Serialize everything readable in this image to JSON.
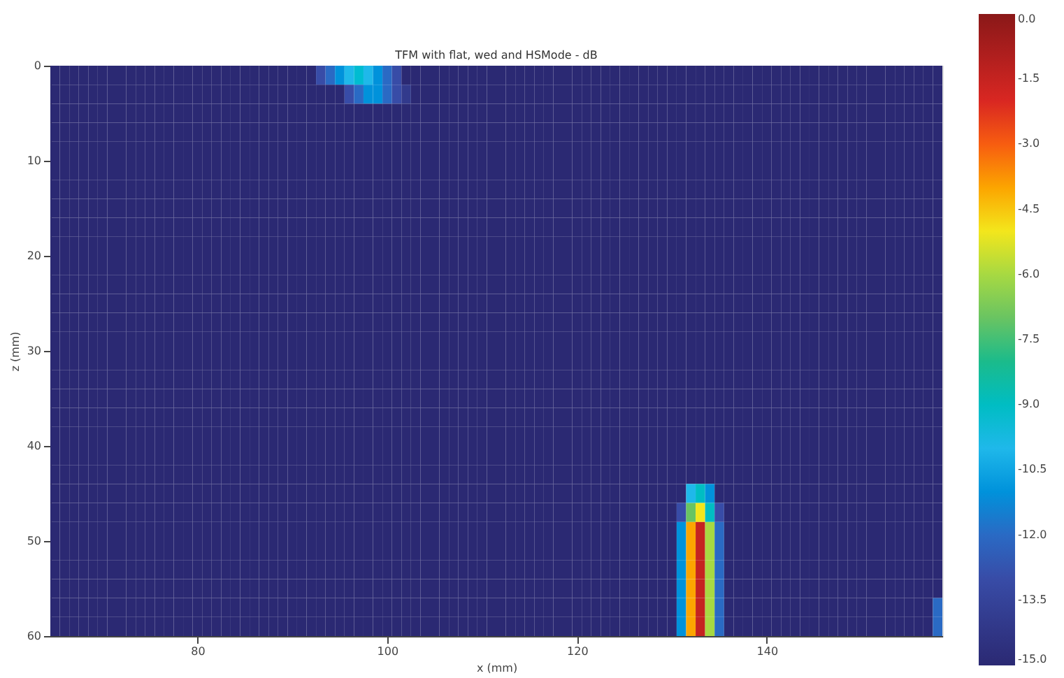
{
  "chart_data": {
    "type": "heatmap",
    "title": "TFM with flat, wed and HSMode - dB",
    "xlabel": "x (mm)",
    "ylabel": "z (mm)",
    "xlim": [
      64.5,
      158.5
    ],
    "ylim": [
      60,
      0
    ],
    "xticks": [
      80,
      100,
      120,
      140
    ],
    "yticks": [
      0,
      10,
      20,
      30,
      40,
      50,
      60
    ],
    "clim": [
      -15,
      0
    ],
    "cticks": [
      {
        "value": 0,
        "label": "0.0"
      },
      {
        "value": -1.5,
        "label": "-1.5"
      },
      {
        "value": -3,
        "label": "-3.0"
      },
      {
        "value": -4.5,
        "label": "-4.5"
      },
      {
        "value": -6,
        "label": "-6.0"
      },
      {
        "value": -7.5,
        "label": "-7.5"
      },
      {
        "value": -9,
        "label": "-9.0"
      },
      {
        "value": -10.5,
        "label": "-10.5"
      },
      {
        "value": -12,
        "label": "-12.0"
      },
      {
        "value": -13.5,
        "label": "-13.5"
      },
      {
        "value": -15,
        "label": "-15.0"
      }
    ],
    "x": [
      65,
      66,
      67,
      68,
      69,
      70,
      71,
      72,
      73,
      74,
      75,
      76,
      77,
      78,
      79,
      80,
      81,
      82,
      83,
      84,
      85,
      86,
      87,
      88,
      89,
      90,
      91,
      92,
      93,
      94,
      95,
      96,
      97,
      98,
      99,
      100,
      101,
      102,
      103,
      104,
      105,
      106,
      107,
      108,
      109,
      110,
      111,
      112,
      113,
      114,
      115,
      116,
      117,
      118,
      119,
      120,
      121,
      122,
      123,
      124,
      125,
      126,
      127,
      128,
      129,
      130,
      131,
      132,
      133,
      134,
      135,
      136,
      137,
      138,
      139,
      140,
      141,
      142,
      143,
      144,
      145,
      146,
      147,
      148,
      149,
      150,
      151,
      152,
      153,
      154,
      155,
      156,
      157,
      158
    ],
    "y": [
      1,
      3,
      5,
      7,
      9,
      11,
      13,
      15,
      17,
      19,
      21,
      23,
      25,
      27,
      29,
      31,
      33,
      35,
      37,
      39,
      41,
      43,
      45,
      47,
      49,
      51,
      53,
      55,
      57,
      59
    ],
    "cells": [
      [
        -15,
        -15,
        -15,
        -15,
        -15,
        -15,
        -15,
        -15,
        -15,
        -15,
        -15,
        -15,
        -15,
        -15,
        -15,
        -15,
        -15,
        -15,
        -15,
        -15,
        -15,
        -15,
        -15,
        -15,
        -15,
        -15,
        -15,
        -15,
        -13,
        -12,
        -11,
        -10,
        -9.3,
        -10,
        -11,
        -12,
        -13,
        -15,
        -15,
        -15,
        -15,
        -15,
        -15,
        -15,
        -15,
        -15,
        -15,
        -15,
        -15,
        -15,
        -15,
        -15,
        -15,
        -15,
        -15,
        -15,
        -15,
        -15,
        -15,
        -15,
        -15,
        -15,
        -15,
        -15,
        -15,
        -15,
        -15,
        -15,
        -15,
        -15,
        -15,
        -15,
        -15,
        -15,
        -15,
        -15,
        -15,
        -15,
        -15,
        -15,
        -15,
        -15,
        -15,
        -15,
        -15,
        -15,
        -15,
        -15,
        -15,
        -15,
        -15,
        -15,
        -15,
        -15
      ],
      [
        -15,
        -15,
        -15,
        -15,
        -15,
        -15,
        -15,
        -15,
        -15,
        -15,
        -15,
        -15,
        -15,
        -15,
        -15,
        -15,
        -15,
        -15,
        -15,
        -15,
        -15,
        -15,
        -15,
        -15,
        -15,
        -15,
        -15,
        -15,
        -15,
        -15,
        -15,
        -13,
        -12,
        -11,
        -11,
        -12,
        -13,
        -14,
        -15,
        -15,
        -15,
        -15,
        -15,
        -15,
        -15,
        -15,
        -15,
        -15,
        -15,
        -15,
        -15,
        -15,
        -15,
        -15,
        -15,
        -15,
        -15,
        -15,
        -15,
        -15,
        -15,
        -15,
        -15,
        -15,
        -15,
        -15,
        -15,
        -15,
        -15,
        -15,
        -15,
        -15,
        -15,
        -15,
        -15,
        -15,
        -15,
        -15,
        -15,
        -15,
        -15,
        -15,
        -15,
        -15,
        -15,
        -15,
        -15,
        -15,
        -15,
        -15,
        -15,
        -15,
        -15,
        -15
      ],
      [
        -15,
        -15,
        -15,
        -15,
        -15,
        -15,
        -15,
        -15,
        -15,
        -15,
        -15,
        -15,
        -15,
        -15,
        -15,
        -15,
        -15,
        -15,
        -15,
        -15,
        -15,
        -15,
        -15,
        -15,
        -15,
        -15,
        -15,
        -15,
        -15,
        -15,
        -15,
        -15,
        -15,
        -15,
        -15,
        -15,
        -15,
        -15,
        -15,
        -15,
        -15,
        -15,
        -15,
        -15,
        -15,
        -15,
        -15,
        -15,
        -15,
        -15,
        -15,
        -15,
        -15,
        -15,
        -15,
        -15,
        -15,
        -15,
        -15,
        -15,
        -15,
        -15,
        -15,
        -15,
        -15,
        -15,
        -15,
        -15,
        -15,
        -15,
        -15,
        -15,
        -15,
        -15,
        -15,
        -15,
        -15,
        -15,
        -15,
        -15,
        -15,
        -15,
        -15,
        -15,
        -15,
        -15,
        -15,
        -15,
        -15,
        -15,
        -15,
        -15,
        -15,
        -15
      ],
      [
        -15,
        -15,
        -15,
        -15,
        -15,
        -15,
        -15,
        -15,
        -15,
        -15,
        -15,
        -15,
        -15,
        -15,
        -15,
        -15,
        -15,
        -15,
        -15,
        -15,
        -15,
        -15,
        -15,
        -15,
        -15,
        -15,
        -15,
        -15,
        -15,
        -15,
        -15,
        -15,
        -15,
        -15,
        -15,
        -15,
        -15,
        -15,
        -15,
        -15,
        -15,
        -15,
        -15,
        -15,
        -15,
        -15,
        -15,
        -15,
        -15,
        -15,
        -15,
        -15,
        -15,
        -15,
        -15,
        -15,
        -15,
        -15,
        -15,
        -15,
        -15,
        -15,
        -15,
        -15,
        -15,
        -15,
        -15,
        -15,
        -15,
        -15,
        -15,
        -15,
        -15,
        -15,
        -15,
        -15,
        -15,
        -15,
        -15,
        -15,
        -15,
        -15,
        -15,
        -15,
        -15,
        -15,
        -15,
        -15,
        -15,
        -15,
        -15,
        -15,
        -15,
        -15
      ],
      [
        -15,
        -15,
        -15,
        -15,
        -15,
        -15,
        -15,
        -15,
        -15,
        -15,
        -15,
        -15,
        -15,
        -15,
        -15,
        -15,
        -15,
        -15,
        -15,
        -15,
        -15,
        -15,
        -15,
        -15,
        -15,
        -15,
        -15,
        -15,
        -15,
        -15,
        -15,
        -15,
        -15,
        -15,
        -15,
        -15,
        -15,
        -15,
        -15,
        -15,
        -15,
        -15,
        -15,
        -15,
        -15,
        -15,
        -15,
        -15,
        -15,
        -15,
        -15,
        -15,
        -15,
        -15,
        -15,
        -15,
        -15,
        -15,
        -15,
        -15,
        -15,
        -15,
        -15,
        -15,
        -15,
        -15,
        -15,
        -15,
        -15,
        -15,
        -15,
        -15,
        -15,
        -15,
        -15,
        -15,
        -15,
        -15,
        -15,
        -15,
        -15,
        -15,
        -15,
        -15,
        -15,
        -15,
        -15,
        -15,
        -15,
        -15,
        -15,
        -15,
        -15,
        -15
      ],
      [
        -15,
        -15,
        -15,
        -15,
        -15,
        -15,
        -15,
        -15,
        -15,
        -15,
        -15,
        -15,
        -15,
        -15,
        -15,
        -15,
        -15,
        -15,
        -15,
        -15,
        -15,
        -15,
        -15,
        -15,
        -15,
        -15,
        -15,
        -15,
        -15,
        -15,
        -15,
        -15,
        -15,
        -15,
        -15,
        -15,
        -15,
        -15,
        -15,
        -15,
        -15,
        -15,
        -15,
        -15,
        -15,
        -15,
        -15,
        -15,
        -15,
        -15,
        -15,
        -15,
        -15,
        -15,
        -15,
        -15,
        -15,
        -15,
        -15,
        -15,
        -15,
        -15,
        -15,
        -15,
        -15,
        -15,
        -15,
        -15,
        -15,
        -15,
        -15,
        -15,
        -15,
        -15,
        -15,
        -15,
        -15,
        -15,
        -15,
        -15,
        -15,
        -15,
        -15,
        -15,
        -15,
        -15,
        -15,
        -15,
        -15,
        -15,
        -15,
        -15,
        -15,
        -15
      ],
      [
        -15,
        -15,
        -15,
        -15,
        -15,
        -15,
        -15,
        -15,
        -15,
        -15,
        -15,
        -15,
        -15,
        -15,
        -15,
        -15,
        -15,
        -15,
        -15,
        -15,
        -15,
        -15,
        -15,
        -15,
        -15,
        -15,
        -15,
        -15,
        -15,
        -15,
        -15,
        -15,
        -15,
        -15,
        -15,
        -15,
        -15,
        -15,
        -15,
        -15,
        -15,
        -15,
        -15,
        -15,
        -15,
        -15,
        -15,
        -15,
        -15,
        -15,
        -15,
        -15,
        -15,
        -15,
        -15,
        -15,
        -15,
        -15,
        -15,
        -15,
        -15,
        -15,
        -15,
        -15,
        -15,
        -15,
        -15,
        -15,
        -15,
        -15,
        -15,
        -15,
        -15,
        -15,
        -15,
        -15,
        -15,
        -15,
        -15,
        -15,
        -15,
        -15,
        -15,
        -15,
        -15,
        -15,
        -15,
        -15,
        -15,
        -15,
        -15,
        -15,
        -15,
        -15
      ],
      [
        -15,
        -15,
        -15,
        -15,
        -15,
        -15,
        -15,
        -15,
        -15,
        -15,
        -15,
        -15,
        -15,
        -15,
        -15,
        -15,
        -15,
        -15,
        -15,
        -15,
        -15,
        -15,
        -15,
        -15,
        -15,
        -15,
        -15,
        -15,
        -15,
        -15,
        -15,
        -15,
        -15,
        -15,
        -15,
        -15,
        -15,
        -15,
        -15,
        -15,
        -15,
        -15,
        -15,
        -15,
        -15,
        -15,
        -15,
        -15,
        -15,
        -15,
        -15,
        -15,
        -15,
        -15,
        -15,
        -15,
        -15,
        -15,
        -15,
        -15,
        -15,
        -15,
        -15,
        -15,
        -15,
        -15,
        -15,
        -15,
        -15,
        -15,
        -15,
        -15,
        -15,
        -15,
        -15,
        -15,
        -15,
        -15,
        -15,
        -15,
        -15,
        -15,
        -15,
        -15,
        -15,
        -15,
        -15,
        -15,
        -15,
        -15,
        -15,
        -15,
        -15,
        -15
      ],
      [
        -15,
        -15,
        -15,
        -15,
        -15,
        -15,
        -15,
        -15,
        -15,
        -15,
        -15,
        -15,
        -15,
        -15,
        -15,
        -15,
        -15,
        -15,
        -15,
        -15,
        -15,
        -15,
        -15,
        -15,
        -15,
        -15,
        -15,
        -15,
        -15,
        -15,
        -15,
        -15,
        -15,
        -15,
        -15,
        -15,
        -15,
        -15,
        -15,
        -15,
        -15,
        -15,
        -15,
        -15,
        -15,
        -15,
        -15,
        -15,
        -15,
        -15,
        -15,
        -15,
        -15,
        -15,
        -15,
        -15,
        -15,
        -15,
        -15,
        -15,
        -15,
        -15,
        -15,
        -15,
        -15,
        -15,
        -15,
        -15,
        -15,
        -15,
        -15,
        -15,
        -15,
        -15,
        -15,
        -15,
        -15,
        -15,
        -15,
        -15,
        -15,
        -15,
        -15,
        -15,
        -15,
        -15,
        -15,
        -15,
        -15,
        -15,
        -15,
        -15,
        -15,
        -15
      ],
      [
        -15,
        -15,
        -15,
        -15,
        -15,
        -15,
        -15,
        -15,
        -15,
        -15,
        -15,
        -15,
        -15,
        -15,
        -15,
        -15,
        -15,
        -15,
        -15,
        -15,
        -15,
        -15,
        -15,
        -15,
        -15,
        -15,
        -15,
        -15,
        -15,
        -15,
        -15,
        -15,
        -15,
        -15,
        -15,
        -15,
        -15,
        -15,
        -15,
        -15,
        -15,
        -15,
        -15,
        -15,
        -15,
        -15,
        -15,
        -15,
        -15,
        -15,
        -15,
        -15,
        -15,
        -15,
        -15,
        -15,
        -15,
        -15,
        -15,
        -15,
        -15,
        -15,
        -15,
        -15,
        -15,
        -15,
        -15,
        -15,
        -15,
        -15,
        -15,
        -15,
        -15,
        -15,
        -15,
        -15,
        -15,
        -15,
        -15,
        -15,
        -15,
        -15,
        -15,
        -15,
        -15,
        -15,
        -15,
        -15,
        -15,
        -15,
        -15,
        -15,
        -15,
        -15
      ],
      [
        -15,
        -15,
        -15,
        -15,
        -15,
        -15,
        -15,
        -15,
        -15,
        -15,
        -15,
        -15,
        -15,
        -15,
        -15,
        -15,
        -15,
        -15,
        -15,
        -15,
        -15,
        -15,
        -15,
        -15,
        -15,
        -15,
        -15,
        -15,
        -15,
        -15,
        -15,
        -15,
        -15,
        -15,
        -15,
        -15,
        -15,
        -15,
        -15,
        -15,
        -15,
        -15,
        -15,
        -15,
        -15,
        -15,
        -15,
        -15,
        -15,
        -15,
        -15,
        -15,
        -15,
        -15,
        -15,
        -15,
        -15,
        -15,
        -15,
        -15,
        -15,
        -15,
        -15,
        -15,
        -15,
        -15,
        -15,
        -15,
        -15,
        -15,
        -15,
        -15,
        -15,
        -15,
        -15,
        -15,
        -15,
        -15,
        -15,
        -15,
        -15,
        -15,
        -15,
        -15,
        -15,
        -15,
        -15,
        -15,
        -15,
        -15,
        -15,
        -15,
        -15,
        -15
      ],
      [
        -15,
        -15,
        -15,
        -15,
        -15,
        -15,
        -15,
        -15,
        -15,
        -15,
        -15,
        -15,
        -15,
        -15,
        -15,
        -15,
        -15,
        -15,
        -15,
        -15,
        -15,
        -15,
        -15,
        -15,
        -15,
        -15,
        -15,
        -15,
        -15,
        -15,
        -15,
        -15,
        -15,
        -15,
        -15,
        -15,
        -15,
        -15,
        -15,
        -15,
        -15,
        -15,
        -15,
        -15,
        -15,
        -15,
        -15,
        -15,
        -15,
        -15,
        -15,
        -15,
        -15,
        -15,
        -15,
        -15,
        -15,
        -15,
        -15,
        -15,
        -15,
        -15,
        -15,
        -15,
        -15,
        -15,
        -15,
        -15,
        -15,
        -15,
        -15,
        -15,
        -15,
        -15,
        -15,
        -15,
        -15,
        -15,
        -15,
        -15,
        -15,
        -15,
        -15,
        -15,
        -15,
        -15,
        -15,
        -15,
        -15,
        -15,
        -15,
        -15,
        -15,
        -15
      ],
      [
        -15,
        -15,
        -15,
        -15,
        -15,
        -15,
        -15,
        -15,
        -15,
        -15,
        -15,
        -15,
        -15,
        -15,
        -15,
        -15,
        -15,
        -15,
        -15,
        -15,
        -15,
        -15,
        -15,
        -15,
        -15,
        -15,
        -15,
        -15,
        -15,
        -15,
        -15,
        -15,
        -15,
        -15,
        -15,
        -15,
        -15,
        -15,
        -15,
        -15,
        -15,
        -15,
        -15,
        -15,
        -15,
        -15,
        -15,
        -15,
        -15,
        -15,
        -15,
        -15,
        -15,
        -15,
        -15,
        -15,
        -15,
        -15,
        -15,
        -15,
        -15,
        -15,
        -15,
        -15,
        -15,
        -15,
        -15,
        -15,
        -15,
        -15,
        -15,
        -15,
        -15,
        -15,
        -15,
        -15,
        -15,
        -15,
        -15,
        -15,
        -15,
        -15,
        -15,
        -15,
        -15,
        -15,
        -15,
        -15,
        -15,
        -15,
        -15,
        -15,
        -15,
        -15
      ],
      [
        -15,
        -15,
        -15,
        -15,
        -15,
        -15,
        -15,
        -15,
        -15,
        -15,
        -15,
        -15,
        -15,
        -15,
        -15,
        -15,
        -15,
        -15,
        -15,
        -15,
        -15,
        -15,
        -15,
        -15,
        -15,
        -15,
        -15,
        -15,
        -15,
        -15,
        -15,
        -15,
        -15,
        -15,
        -15,
        -15,
        -15,
        -15,
        -15,
        -15,
        -15,
        -15,
        -15,
        -15,
        -15,
        -15,
        -15,
        -15,
        -15,
        -15,
        -15,
        -15,
        -15,
        -15,
        -15,
        -15,
        -15,
        -15,
        -15,
        -15,
        -15,
        -15,
        -15,
        -15,
        -15,
        -15,
        -15,
        -15,
        -15,
        -15,
        -15,
        -15,
        -15,
        -15,
        -15,
        -15,
        -15,
        -15,
        -15,
        -15,
        -15,
        -15,
        -15,
        -15,
        -15,
        -15,
        -15,
        -15,
        -15,
        -15,
        -15,
        -15,
        -15,
        -15
      ],
      [
        -15,
        -15,
        -15,
        -15,
        -15,
        -15,
        -15,
        -15,
        -15,
        -15,
        -15,
        -15,
        -15,
        -15,
        -15,
        -15,
        -15,
        -15,
        -15,
        -15,
        -15,
        -15,
        -15,
        -15,
        -15,
        -15,
        -15,
        -15,
        -15,
        -15,
        -15,
        -15,
        -15,
        -15,
        -15,
        -15,
        -15,
        -15,
        -15,
        -15,
        -15,
        -15,
        -15,
        -15,
        -15,
        -15,
        -15,
        -15,
        -15,
        -15,
        -15,
        -15,
        -15,
        -15,
        -15,
        -15,
        -15,
        -15,
        -15,
        -15,
        -15,
        -15,
        -15,
        -15,
        -15,
        -15,
        -15,
        -15,
        -15,
        -15,
        -15,
        -15,
        -15,
        -15,
        -15,
        -15,
        -15,
        -15,
        -15,
        -15,
        -15,
        -15,
        -15,
        -15,
        -15,
        -15,
        -15,
        -15,
        -15,
        -15,
        -15,
        -15,
        -15,
        -15
      ],
      [
        -15,
        -15,
        -15,
        -15,
        -15,
        -15,
        -15,
        -15,
        -15,
        -15,
        -15,
        -15,
        -15,
        -15,
        -15,
        -15,
        -15,
        -15,
        -15,
        -15,
        -15,
        -15,
        -15,
        -15,
        -15,
        -15,
        -15,
        -15,
        -15,
        -15,
        -15,
        -15,
        -15,
        -15,
        -15,
        -15,
        -15,
        -15,
        -15,
        -15,
        -15,
        -15,
        -15,
        -15,
        -15,
        -15,
        -15,
        -15,
        -15,
        -15,
        -15,
        -15,
        -15,
        -15,
        -15,
        -15,
        -15,
        -15,
        -15,
        -15,
        -15,
        -15,
        -15,
        -15,
        -15,
        -15,
        -15,
        -15,
        -15,
        -15,
        -15,
        -15,
        -15,
        -15,
        -15,
        -15,
        -15,
        -15,
        -15,
        -15,
        -15,
        -15,
        -15,
        -15,
        -15,
        -15,
        -15,
        -15,
        -15,
        -15,
        -15,
        -15,
        -15,
        -15
      ],
      [
        -15,
        -15,
        -15,
        -15,
        -15,
        -15,
        -15,
        -15,
        -15,
        -15,
        -15,
        -15,
        -15,
        -15,
        -15,
        -15,
        -15,
        -15,
        -15,
        -15,
        -15,
        -15,
        -15,
        -15,
        -15,
        -15,
        -15,
        -15,
        -15,
        -15,
        -15,
        -15,
        -15,
        -15,
        -15,
        -15,
        -15,
        -15,
        -15,
        -15,
        -15,
        -15,
        -15,
        -15,
        -15,
        -15,
        -15,
        -15,
        -15,
        -15,
        -15,
        -15,
        -15,
        -15,
        -15,
        -15,
        -15,
        -15,
        -15,
        -15,
        -15,
        -15,
        -15,
        -15,
        -15,
        -15,
        -15,
        -15,
        -15,
        -15,
        -15,
        -15,
        -15,
        -15,
        -15,
        -15,
        -15,
        -15,
        -15,
        -15,
        -15,
        -15,
        -15,
        -15,
        -15,
        -15,
        -15,
        -15,
        -15,
        -15,
        -15,
        -15,
        -15,
        -15
      ],
      [
        -15,
        -15,
        -15,
        -15,
        -15,
        -15,
        -15,
        -15,
        -15,
        -15,
        -15,
        -15,
        -15,
        -15,
        -15,
        -15,
        -15,
        -15,
        -15,
        -15,
        -15,
        -15,
        -15,
        -15,
        -15,
        -15,
        -15,
        -15,
        -15,
        -15,
        -15,
        -15,
        -15,
        -15,
        -15,
        -15,
        -15,
        -15,
        -15,
        -15,
        -15,
        -15,
        -15,
        -15,
        -15,
        -15,
        -15,
        -15,
        -15,
        -15,
        -15,
        -15,
        -15,
        -15,
        -15,
        -15,
        -15,
        -15,
        -15,
        -15,
        -15,
        -15,
        -15,
        -15,
        -15,
        -15,
        -15,
        -15,
        -15,
        -15,
        -15,
        -15,
        -15,
        -15,
        -15,
        -15,
        -15,
        -15,
        -15,
        -15,
        -15,
        -15,
        -15,
        -15,
        -15,
        -15,
        -15,
        -15,
        -15,
        -15,
        -15,
        -15,
        -15,
        -15
      ],
      [
        -15,
        -15,
        -15,
        -15,
        -15,
        -15,
        -15,
        -15,
        -15,
        -15,
        -15,
        -15,
        -15,
        -15,
        -15,
        -15,
        -15,
        -15,
        -15,
        -15,
        -15,
        -15,
        -15,
        -15,
        -15,
        -15,
        -15,
        -15,
        -15,
        -15,
        -15,
        -15,
        -15,
        -15,
        -15,
        -15,
        -15,
        -15,
        -15,
        -15,
        -15,
        -15,
        -15,
        -15,
        -15,
        -15,
        -15,
        -15,
        -15,
        -15,
        -15,
        -15,
        -15,
        -15,
        -15,
        -15,
        -15,
        -15,
        -15,
        -15,
        -15,
        -15,
        -15,
        -15,
        -15,
        -15,
        -15,
        -15,
        -15,
        -15,
        -15,
        -15,
        -15,
        -15,
        -15,
        -15,
        -15,
        -15,
        -15,
        -15,
        -15,
        -15,
        -15,
        -15,
        -15,
        -15,
        -15,
        -15,
        -15,
        -15,
        -15,
        -15,
        -15,
        -15
      ],
      [
        -15,
        -15,
        -15,
        -15,
        -15,
        -15,
        -15,
        -15,
        -15,
        -15,
        -15,
        -15,
        -15,
        -15,
        -15,
        -15,
        -15,
        -15,
        -15,
        -15,
        -15,
        -15,
        -15,
        -15,
        -15,
        -15,
        -15,
        -15,
        -15,
        -15,
        -15,
        -15,
        -15,
        -15,
        -15,
        -15,
        -15,
        -15,
        -15,
        -15,
        -15,
        -15,
        -15,
        -15,
        -15,
        -15,
        -15,
        -15,
        -15,
        -15,
        -15,
        -15,
        -15,
        -15,
        -15,
        -15,
        -15,
        -15,
        -15,
        -15,
        -15,
        -15,
        -15,
        -15,
        -15,
        -15,
        -15,
        -15,
        -15,
        -15,
        -15,
        -15,
        -15,
        -15,
        -15,
        -15,
        -15,
        -15,
        -15,
        -15,
        -15,
        -15,
        -15,
        -15,
        -15,
        -15,
        -15,
        -15,
        -15,
        -15,
        -15,
        -15,
        -15,
        -15
      ],
      [
        -15,
        -15,
        -15,
        -15,
        -15,
        -15,
        -15,
        -15,
        -15,
        -15,
        -15,
        -15,
        -15,
        -15,
        -15,
        -15,
        -15,
        -15,
        -15,
        -15,
        -15,
        -15,
        -15,
        -15,
        -15,
        -15,
        -15,
        -15,
        -15,
        -15,
        -15,
        -15,
        -15,
        -15,
        -15,
        -15,
        -15,
        -15,
        -15,
        -15,
        -15,
        -15,
        -15,
        -15,
        -15,
        -15,
        -15,
        -15,
        -15,
        -15,
        -15,
        -15,
        -15,
        -15,
        -15,
        -15,
        -15,
        -15,
        -15,
        -15,
        -15,
        -15,
        -15,
        -15,
        -15,
        -15,
        -15,
        -15,
        -15,
        -15,
        -15,
        -15,
        -15,
        -15,
        -15,
        -15,
        -15,
        -15,
        -15,
        -15,
        -15,
        -15,
        -15,
        -15,
        -15,
        -15,
        -15,
        -15,
        -15,
        -15,
        -15,
        -15,
        -15,
        -15
      ],
      [
        -15,
        -15,
        -15,
        -15,
        -15,
        -15,
        -15,
        -15,
        -15,
        -15,
        -15,
        -15,
        -15,
        -15,
        -15,
        -15,
        -15,
        -15,
        -15,
        -15,
        -15,
        -15,
        -15,
        -15,
        -15,
        -15,
        -15,
        -15,
        -15,
        -15,
        -15,
        -15,
        -15,
        -15,
        -15,
        -15,
        -15,
        -15,
        -15,
        -15,
        -15,
        -15,
        -15,
        -15,
        -15,
        -15,
        -15,
        -15,
        -15,
        -15,
        -15,
        -15,
        -15,
        -15,
        -15,
        -15,
        -15,
        -15,
        -15,
        -15,
        -15,
        -15,
        -15,
        -15,
        -15,
        -15,
        -15,
        -15,
        -15,
        -15,
        -15,
        -15,
        -15,
        -15,
        -15,
        -15,
        -15,
        -15,
        -15,
        -15,
        -15,
        -15,
        -15,
        -15,
        -15,
        -15,
        -15,
        -15,
        -15,
        -15,
        -15,
        -15,
        -15,
        -15
      ],
      [
        -15,
        -15,
        -15,
        -15,
        -15,
        -15,
        -15,
        -15,
        -15,
        -15,
        -15,
        -15,
        -15,
        -15,
        -15,
        -15,
        -15,
        -15,
        -15,
        -15,
        -15,
        -15,
        -15,
        -15,
        -15,
        -15,
        -15,
        -15,
        -15,
        -15,
        -15,
        -15,
        -15,
        -15,
        -15,
        -15,
        -15,
        -15,
        -15,
        -15,
        -15,
        -15,
        -15,
        -15,
        -15,
        -15,
        -15,
        -15,
        -15,
        -15,
        -15,
        -15,
        -15,
        -15,
        -15,
        -15,
        -15,
        -15,
        -15,
        -15,
        -15,
        -15,
        -15,
        -15,
        -15,
        -15,
        -15,
        -10,
        -9,
        -11,
        -15,
        -15,
        -15,
        -15,
        -15,
        -15,
        -15,
        -15,
        -15,
        -15,
        -15,
        -15,
        -15,
        -15,
        -15,
        -15,
        -15,
        -15,
        -15,
        -15,
        -15,
        -15,
        -15,
        -15
      ],
      [
        -15,
        -15,
        -15,
        -15,
        -15,
        -15,
        -15,
        -15,
        -15,
        -15,
        -15,
        -15,
        -15,
        -15,
        -15,
        -15,
        -15,
        -15,
        -15,
        -15,
        -15,
        -15,
        -15,
        -15,
        -15,
        -15,
        -15,
        -15,
        -15,
        -15,
        -15,
        -15,
        -15,
        -15,
        -15,
        -15,
        -15,
        -15,
        -15,
        -15,
        -15,
        -15,
        -15,
        -15,
        -15,
        -15,
        -15,
        -15,
        -15,
        -15,
        -15,
        -15,
        -15,
        -15,
        -15,
        -15,
        -15,
        -15,
        -15,
        -15,
        -15,
        -15,
        -15,
        -15,
        -15,
        -15,
        -13,
        -7,
        -5,
        -9,
        -13,
        -15,
        -15,
        -15,
        -15,
        -15,
        -15,
        -15,
        -15,
        -15,
        -15,
        -15,
        -15,
        -15,
        -15,
        -15,
        -15,
        -15,
        -15,
        -15,
        -15,
        -15,
        -15,
        -15
      ],
      [
        -15,
        -15,
        -15,
        -15,
        -15,
        -15,
        -15,
        -15,
        -15,
        -15,
        -15,
        -15,
        -15,
        -15,
        -15,
        -15,
        -15,
        -15,
        -15,
        -15,
        -15,
        -15,
        -15,
        -15,
        -15,
        -15,
        -15,
        -15,
        -15,
        -15,
        -15,
        -15,
        -15,
        -15,
        -15,
        -15,
        -15,
        -15,
        -15,
        -15,
        -15,
        -15,
        -15,
        -15,
        -15,
        -15,
        -15,
        -15,
        -15,
        -15,
        -15,
        -15,
        -15,
        -15,
        -15,
        -15,
        -15,
        -15,
        -15,
        -15,
        -15,
        -15,
        -15,
        -15,
        -15,
        -15,
        -11,
        -4,
        -1.5,
        -6,
        -12,
        -15,
        -15,
        -15,
        -15,
        -15,
        -15,
        -15,
        -15,
        -15,
        -15,
        -15,
        -15,
        -15,
        -15,
        -15,
        -15,
        -15,
        -15,
        -15,
        -15,
        -15,
        -15,
        -15
      ],
      [
        -15,
        -15,
        -15,
        -15,
        -15,
        -15,
        -15,
        -15,
        -15,
        -15,
        -15,
        -15,
        -15,
        -15,
        -15,
        -15,
        -15,
        -15,
        -15,
        -15,
        -15,
        -15,
        -15,
        -15,
        -15,
        -15,
        -15,
        -15,
        -15,
        -15,
        -15,
        -15,
        -15,
        -15,
        -15,
        -15,
        -15,
        -15,
        -15,
        -15,
        -15,
        -15,
        -15,
        -15,
        -15,
        -15,
        -15,
        -15,
        -15,
        -15,
        -15,
        -15,
        -15,
        -15,
        -15,
        -15,
        -15,
        -15,
        -15,
        -15,
        -15,
        -15,
        -15,
        -15,
        -15,
        -15,
        -11,
        -4,
        -1.5,
        -6,
        -12,
        -15,
        -15,
        -15,
        -15,
        -15,
        -15,
        -15,
        -15,
        -15,
        -15,
        -15,
        -15,
        -15,
        -15,
        -15,
        -15,
        -15,
        -15,
        -15,
        -15,
        -15,
        -15,
        -15
      ],
      [
        -15,
        -15,
        -15,
        -15,
        -15,
        -15,
        -15,
        -15,
        -15,
        -15,
        -15,
        -15,
        -15,
        -15,
        -15,
        -15,
        -15,
        -15,
        -15,
        -15,
        -15,
        -15,
        -15,
        -15,
        -15,
        -15,
        -15,
        -15,
        -15,
        -15,
        -15,
        -15,
        -15,
        -15,
        -15,
        -15,
        -15,
        -15,
        -15,
        -15,
        -15,
        -15,
        -15,
        -15,
        -15,
        -15,
        -15,
        -15,
        -15,
        -15,
        -15,
        -15,
        -15,
        -15,
        -15,
        -15,
        -15,
        -15,
        -15,
        -15,
        -15,
        -15,
        -15,
        -15,
        -15,
        -15,
        -11,
        -4,
        -1.5,
        -6,
        -12,
        -15,
        -15,
        -15,
        -15,
        -15,
        -15,
        -15,
        -15,
        -15,
        -15,
        -15,
        -15,
        -15,
        -15,
        -15,
        -15,
        -15,
        -15,
        -15,
        -15,
        -15,
        -15,
        -15
      ],
      [
        -15,
        -15,
        -15,
        -15,
        -15,
        -15,
        -15,
        -15,
        -15,
        -15,
        -15,
        -15,
        -15,
        -15,
        -15,
        -15,
        -15,
        -15,
        -15,
        -15,
        -15,
        -15,
        -15,
        -15,
        -15,
        -15,
        -15,
        -15,
        -15,
        -15,
        -15,
        -15,
        -15,
        -15,
        -15,
        -15,
        -15,
        -15,
        -15,
        -15,
        -15,
        -15,
        -15,
        -15,
        -15,
        -15,
        -15,
        -15,
        -15,
        -15,
        -15,
        -15,
        -15,
        -15,
        -15,
        -15,
        -15,
        -15,
        -15,
        -15,
        -15,
        -15,
        -15,
        -15,
        -15,
        -15,
        -11,
        -4,
        -1.5,
        -6,
        -12,
        -15,
        -15,
        -15,
        -15,
        -15,
        -15,
        -15,
        -15,
        -15,
        -15,
        -15,
        -15,
        -15,
        -15,
        -15,
        -15,
        -15,
        -15,
        -15,
        -15,
        -15,
        -15,
        -15
      ],
      [
        -15,
        -15,
        -15,
        -15,
        -15,
        -15,
        -15,
        -15,
        -15,
        -15,
        -15,
        -15,
        -15,
        -15,
        -15,
        -15,
        -15,
        -15,
        -15,
        -15,
        -15,
        -15,
        -15,
        -15,
        -15,
        -15,
        -15,
        -15,
        -15,
        -15,
        -15,
        -15,
        -15,
        -15,
        -15,
        -15,
        -15,
        -15,
        -15,
        -15,
        -15,
        -15,
        -15,
        -15,
        -15,
        -15,
        -15,
        -15,
        -15,
        -15,
        -15,
        -15,
        -15,
        -15,
        -15,
        -15,
        -15,
        -15,
        -15,
        -15,
        -15,
        -15,
        -15,
        -15,
        -15,
        -15,
        -11,
        -4,
        -1.5,
        -6,
        -12,
        -15,
        -15,
        -15,
        -15,
        -15,
        -15,
        -15,
        -15,
        -15,
        -15,
        -15,
        -15,
        -15,
        -15,
        -15,
        -15,
        -15,
        -15,
        -15,
        -15,
        -15,
        -15,
        -12
      ],
      [
        -15,
        -15,
        -15,
        -15,
        -15,
        -15,
        -15,
        -15,
        -15,
        -15,
        -15,
        -15,
        -15,
        -15,
        -15,
        -15,
        -15,
        -15,
        -15,
        -15,
        -15,
        -15,
        -15,
        -15,
        -15,
        -15,
        -15,
        -15,
        -15,
        -15,
        -15,
        -15,
        -15,
        -15,
        -15,
        -15,
        -15,
        -15,
        -15,
        -15,
        -15,
        -15,
        -15,
        -15,
        -15,
        -15,
        -15,
        -15,
        -15,
        -15,
        -15,
        -15,
        -15,
        -15,
        -15,
        -15,
        -15,
        -15,
        -15,
        -15,
        -15,
        -15,
        -15,
        -15,
        -15,
        -15,
        -11,
        -4,
        -1.5,
        -6,
        -12,
        -15,
        -15,
        -15,
        -15,
        -15,
        -15,
        -15,
        -15,
        -15,
        -15,
        -15,
        -15,
        -15,
        -15,
        -15,
        -15,
        -15,
        -15,
        -15,
        -15,
        -15,
        -15,
        -12
      ]
    ]
  }
}
